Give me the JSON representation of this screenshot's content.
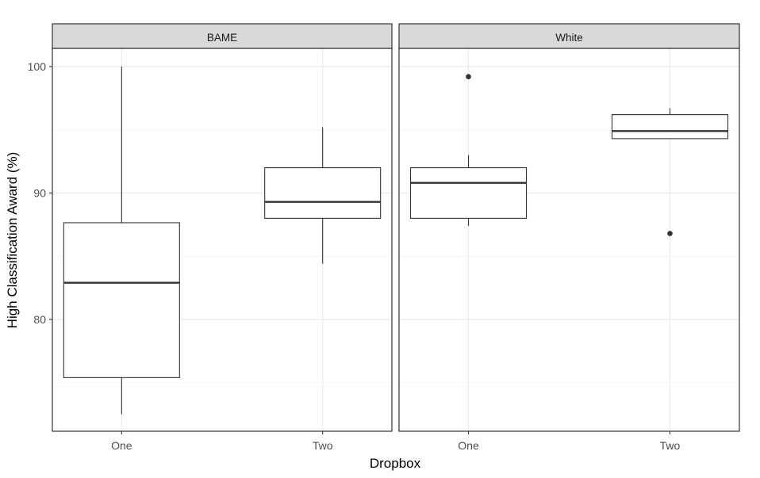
{
  "chart_data": {
    "type": "boxplot",
    "title": "",
    "xlabel": "Dropbox",
    "ylabel": "High Classification Award (%)",
    "ylim": [
      71.16,
      101.44
    ],
    "yticks": [
      80,
      90,
      100
    ],
    "yticks_minor": [
      75,
      85,
      95
    ],
    "grid": true,
    "legend": null,
    "categories": [
      "One",
      "Two"
    ],
    "facets": [
      {
        "label": "BAME",
        "boxes": [
          {
            "category": "One",
            "whisker_low": 72.5,
            "q1": 75.4,
            "median": 82.9,
            "q3": 87.65,
            "whisker_high": 100.0,
            "outliers": []
          },
          {
            "category": "Two",
            "whisker_low": 84.4,
            "q1": 88.0,
            "median": 89.3,
            "q3": 92.0,
            "whisker_high": 95.2,
            "outliers": []
          }
        ]
      },
      {
        "label": "White",
        "boxes": [
          {
            "category": "One",
            "whisker_low": 87.4,
            "q1": 88.0,
            "median": 90.8,
            "q3": 92.0,
            "whisker_high": 93.0,
            "outliers": [
              99.2
            ]
          },
          {
            "category": "Two",
            "whisker_low": 94.3,
            "q1": 94.3,
            "median": 94.9,
            "q3": 96.2,
            "whisker_high": 96.7,
            "outliers": [
              86.8
            ]
          }
        ]
      }
    ]
  },
  "colors": {
    "panel_border": "#333333",
    "strip_fill": "#d9d9d9",
    "grid_major": "#ebebeb",
    "grid_minor": "#f5f5f5",
    "box_line": "#333333",
    "outlier": "#333333",
    "tick_text": "#4d4d4d",
    "title_text": "#000000"
  }
}
